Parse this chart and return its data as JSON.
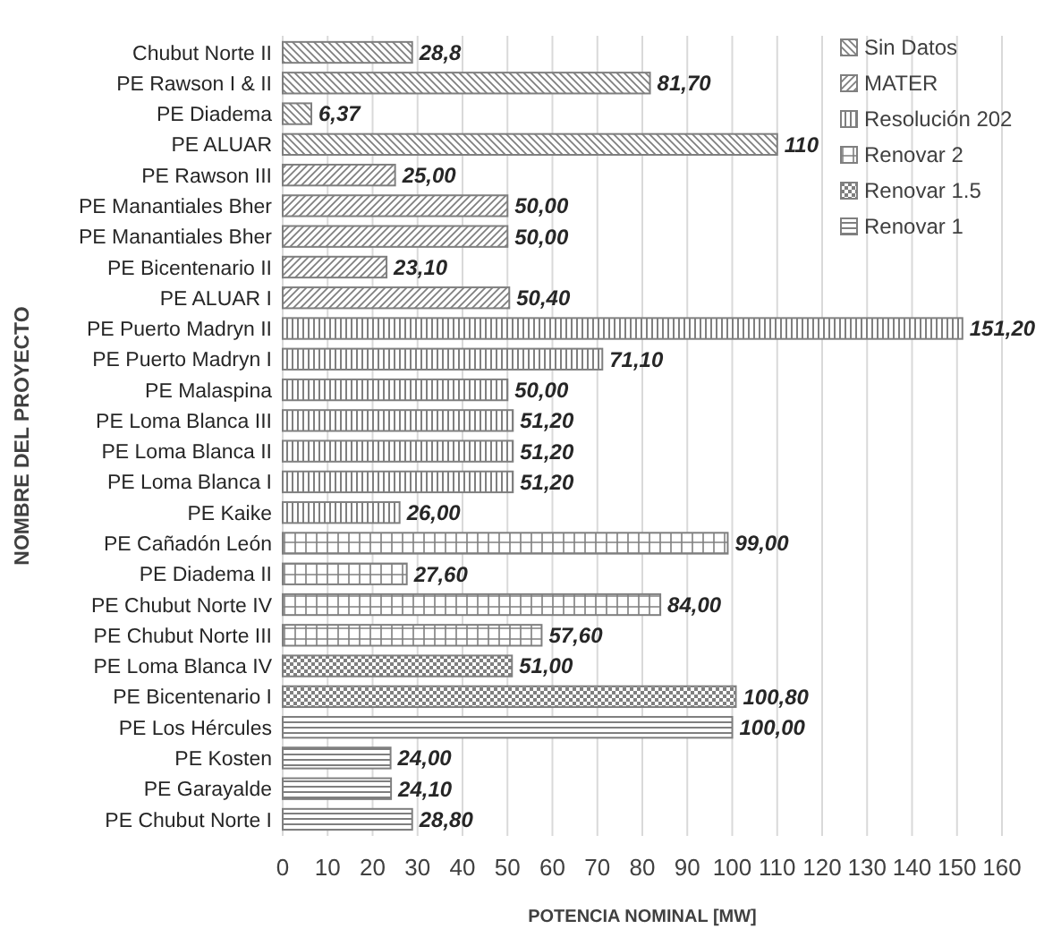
{
  "chart_data": {
    "type": "bar",
    "orientation": "horizontal",
    "xlabel": "POTENCIA NOMINAL [MW]",
    "ylabel": "NOMBRE DEL PROYECTO",
    "categories": [
      "Chubut Norte II",
      "PE Rawson I & II",
      "PE Diadema",
      "PE ALUAR",
      "PE Rawson III",
      "PE Manantiales Bher",
      "PE Manantiales Bher",
      "PE Bicentenario II",
      "PE ALUAR I",
      "PE Puerto Madryn II",
      "PE Puerto Madryn I",
      "PE Malaspina",
      "PE Loma Blanca III",
      "PE Loma Blanca II",
      "PE Loma Blanca I",
      "PE Kaike",
      "PE Cañadón León",
      "PE Diadema II",
      "PE Chubut Norte IV",
      "PE Chubut Norte III",
      "PE Loma Blanca IV",
      "PE Bicentenario I",
      "PE Los Hércules",
      "PE Kosten",
      "PE Garayalde",
      "PE Chubut Norte I"
    ],
    "series": [
      {
        "name": "Sin Datos",
        "color": "#7f7f7f",
        "values": [
          28.8,
          81.7,
          6.37,
          110,
          null,
          null,
          null,
          null,
          null,
          null,
          null,
          null,
          null,
          null,
          null,
          null,
          null,
          null,
          null,
          null,
          null,
          null,
          null,
          null,
          null,
          null
        ],
        "value_labels": [
          "28,8",
          "81,70",
          "6,37",
          "110",
          null,
          null,
          null,
          null,
          null,
          null,
          null,
          null,
          null,
          null,
          null,
          null,
          null,
          null,
          null,
          null,
          null,
          null,
          null,
          null,
          null,
          null
        ]
      },
      {
        "name": "MATER",
        "color": "#7f7f7f",
        "values": [
          null,
          null,
          null,
          null,
          25,
          50,
          50,
          23.1,
          50.4,
          null,
          null,
          null,
          null,
          null,
          null,
          null,
          null,
          null,
          null,
          null,
          null,
          null,
          null,
          null,
          null,
          null
        ],
        "value_labels": [
          null,
          null,
          null,
          null,
          "25,00",
          "50,00",
          "50,00",
          "23,10",
          "50,40",
          null,
          null,
          null,
          null,
          null,
          null,
          null,
          null,
          null,
          null,
          null,
          null,
          null,
          null,
          null,
          null,
          null
        ]
      },
      {
        "name": "Resolución 202",
        "color": "#7f7f7f",
        "values": [
          null,
          null,
          null,
          null,
          null,
          null,
          null,
          null,
          null,
          151.2,
          71.1,
          50,
          51.2,
          51.2,
          51.2,
          26,
          null,
          null,
          null,
          null,
          null,
          null,
          null,
          null,
          null,
          null
        ],
        "value_labels": [
          null,
          null,
          null,
          null,
          null,
          null,
          null,
          null,
          null,
          "151,20",
          "71,10",
          "50,00",
          "51,20",
          "51,20",
          "51,20",
          "26,00",
          null,
          null,
          null,
          null,
          null,
          null,
          null,
          null,
          null,
          null
        ]
      },
      {
        "name": "Renovar 2",
        "color": "#7f7f7f",
        "values": [
          null,
          null,
          null,
          null,
          null,
          null,
          null,
          null,
          null,
          null,
          null,
          null,
          null,
          null,
          null,
          null,
          99,
          27.6,
          84,
          57.6,
          null,
          null,
          null,
          null,
          null,
          null
        ],
        "value_labels": [
          null,
          null,
          null,
          null,
          null,
          null,
          null,
          null,
          null,
          null,
          null,
          null,
          null,
          null,
          null,
          null,
          "99,00",
          "27,60",
          "84,00",
          "57,60",
          null,
          null,
          null,
          null,
          null,
          null
        ]
      },
      {
        "name": "Renovar 1.5",
        "color": "#7f7f7f",
        "values": [
          null,
          null,
          null,
          null,
          null,
          null,
          null,
          null,
          null,
          null,
          null,
          null,
          null,
          null,
          null,
          null,
          null,
          null,
          null,
          null,
          51,
          100.8,
          null,
          null,
          null,
          null
        ],
        "value_labels": [
          null,
          null,
          null,
          null,
          null,
          null,
          null,
          null,
          null,
          null,
          null,
          null,
          null,
          null,
          null,
          null,
          null,
          null,
          null,
          null,
          "51,00",
          "100,80",
          null,
          null,
          null,
          null
        ]
      },
      {
        "name": "Renovar 1",
        "color": "#7f7f7f",
        "values": [
          null,
          null,
          null,
          null,
          null,
          null,
          null,
          null,
          null,
          null,
          null,
          null,
          null,
          null,
          null,
          null,
          null,
          null,
          null,
          null,
          null,
          null,
          100,
          24,
          24.1,
          28.8
        ],
        "value_labels": [
          null,
          null,
          null,
          null,
          null,
          null,
          null,
          null,
          null,
          null,
          null,
          null,
          null,
          null,
          null,
          null,
          null,
          null,
          null,
          null,
          null,
          null,
          "100,00",
          "24,00",
          "24,10",
          "28,80"
        ]
      }
    ],
    "xlim": [
      0,
      160
    ],
    "xticks": [
      0,
      10,
      20,
      30,
      40,
      50,
      60,
      70,
      80,
      90,
      100,
      110,
      120,
      130,
      140,
      150,
      160
    ],
    "grid": "x",
    "legend": "top right"
  }
}
